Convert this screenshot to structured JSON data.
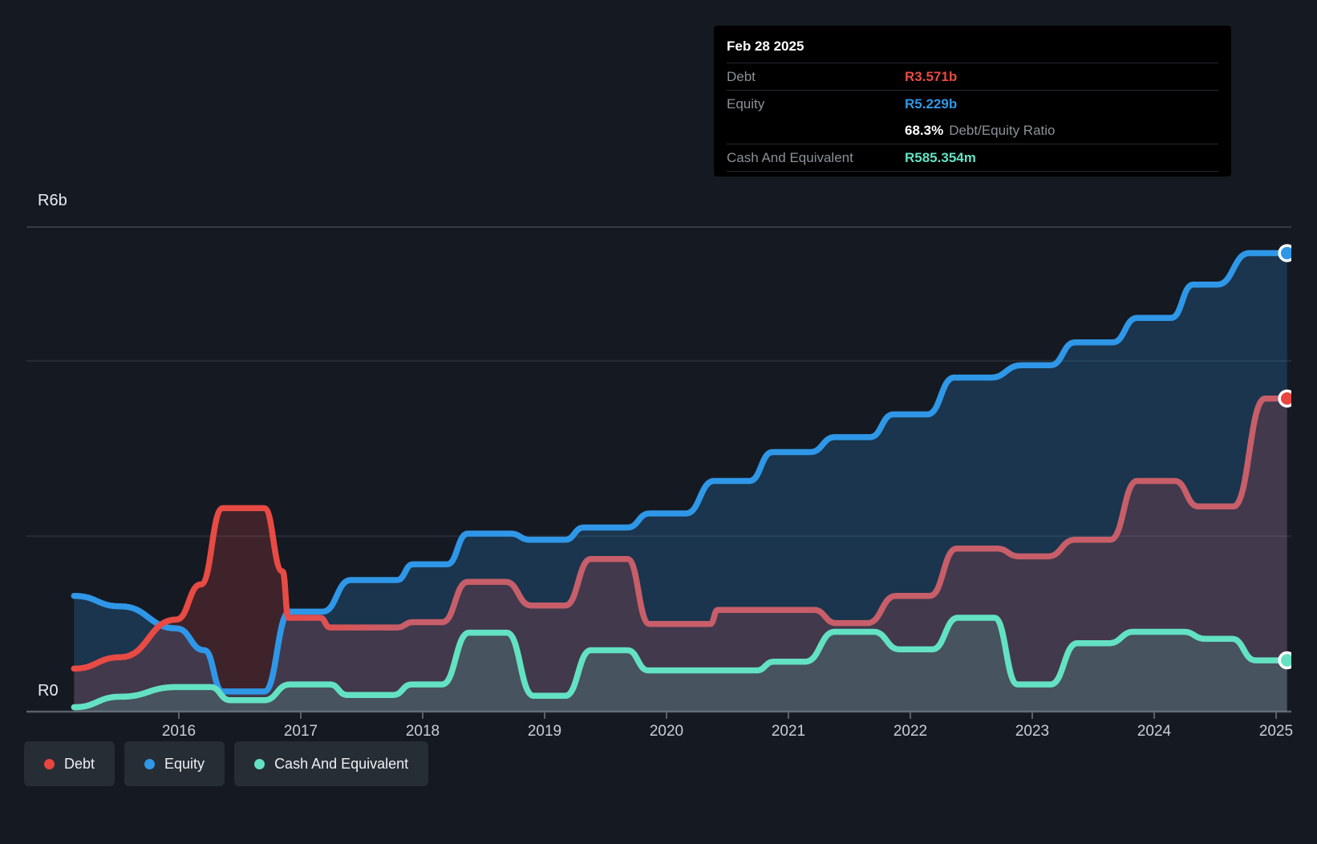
{
  "colors": {
    "debt": "#e84a44",
    "debt_dot": "#e8463f",
    "debt_late": "#c75e69",
    "equity": "#2f97e8",
    "cash": "#63e2c3",
    "background": "#151a22",
    "tooltip_bg": "#000000",
    "axis": "#596069",
    "gridline": "#262d36",
    "top_border": "#343b45",
    "tick_label": "#c9cfd7"
  },
  "tooltip": {
    "date": "Feb 28 2025",
    "debt_label": "Debt",
    "debt_value": "R3.571b",
    "equity_label": "Equity",
    "equity_value": "R5.229b",
    "ratio_value": "68.3%",
    "ratio_label": "Debt/Equity Ratio",
    "cash_label": "Cash And Equivalent",
    "cash_value": "R585.354m"
  },
  "legend": {
    "items": [
      {
        "label": "Debt"
      },
      {
        "label": "Equity"
      },
      {
        "label": "Cash And Equivalent"
      }
    ]
  },
  "chart_data": {
    "type": "area",
    "y_label_top": "R6b",
    "y_label_zero": "R0",
    "currency": "R",
    "unit": "billions ZAR",
    "ylim": [
      0,
      6
    ],
    "x_range": [
      2015.14,
      2025.09
    ],
    "x_ticks": [
      "2016",
      "2017",
      "2018",
      "2019",
      "2020",
      "2021",
      "2022",
      "2023",
      "2024",
      "2025"
    ],
    "gridline_values": [
      2,
      4
    ],
    "legend_position": "bottom-left",
    "series": [
      {
        "name": "Equity",
        "color_key": "equity",
        "end_label": "R5.229b",
        "points": [
          [
            2015.14,
            1.32
          ],
          [
            2015.52,
            1.2
          ],
          [
            2015.98,
            0.95
          ],
          [
            2016.21,
            0.7
          ],
          [
            2016.36,
            0.23
          ],
          [
            2016.7,
            0.23
          ],
          [
            2016.91,
            1.14
          ],
          [
            2017.18,
            1.14
          ],
          [
            2017.41,
            1.5
          ],
          [
            2017.79,
            1.5
          ],
          [
            2017.92,
            1.68
          ],
          [
            2018.2,
            1.68
          ],
          [
            2018.37,
            2.03
          ],
          [
            2018.72,
            2.03
          ],
          [
            2018.88,
            1.96
          ],
          [
            2019.17,
            1.96
          ],
          [
            2019.32,
            2.1
          ],
          [
            2019.68,
            2.1
          ],
          [
            2019.86,
            2.26
          ],
          [
            2020.16,
            2.26
          ],
          [
            2020.39,
            2.63
          ],
          [
            2020.68,
            2.63
          ],
          [
            2020.87,
            2.96
          ],
          [
            2021.18,
            2.96
          ],
          [
            2021.38,
            3.13
          ],
          [
            2021.67,
            3.13
          ],
          [
            2021.86,
            3.39
          ],
          [
            2022.14,
            3.39
          ],
          [
            2022.36,
            3.81
          ],
          [
            2022.66,
            3.81
          ],
          [
            2022.91,
            3.95
          ],
          [
            2023.15,
            3.95
          ],
          [
            2023.35,
            4.21
          ],
          [
            2023.66,
            4.21
          ],
          [
            2023.86,
            4.49
          ],
          [
            2024.14,
            4.49
          ],
          [
            2024.32,
            4.87
          ],
          [
            2024.52,
            4.87
          ],
          [
            2024.78,
            5.229
          ],
          [
            2025.09,
            5.229
          ]
        ]
      },
      {
        "name": "Debt",
        "color_key": "debt",
        "end_label": "R3.571b",
        "points": [
          [
            2015.14,
            0.49
          ],
          [
            2015.52,
            0.62
          ],
          [
            2015.98,
            1.05
          ],
          [
            2016.18,
            1.45
          ],
          [
            2016.36,
            2.32
          ],
          [
            2016.7,
            2.32
          ],
          [
            2016.85,
            1.6
          ],
          [
            2016.9,
            1.07
          ],
          [
            2017.16,
            1.07
          ],
          [
            2017.24,
            0.96
          ],
          [
            2017.79,
            0.96
          ],
          [
            2017.92,
            1.02
          ],
          [
            2018.16,
            1.02
          ],
          [
            2018.37,
            1.48
          ],
          [
            2018.68,
            1.48
          ],
          [
            2018.89,
            1.21
          ],
          [
            2019.17,
            1.21
          ],
          [
            2019.38,
            1.74
          ],
          [
            2019.68,
            1.74
          ],
          [
            2019.86,
            1.0
          ],
          [
            2020.36,
            1.0
          ],
          [
            2020.42,
            1.16
          ],
          [
            2021.21,
            1.16
          ],
          [
            2021.39,
            1.01
          ],
          [
            2021.65,
            1.01
          ],
          [
            2021.88,
            1.32
          ],
          [
            2022.16,
            1.32
          ],
          [
            2022.38,
            1.86
          ],
          [
            2022.71,
            1.86
          ],
          [
            2022.89,
            1.77
          ],
          [
            2023.13,
            1.77
          ],
          [
            2023.35,
            1.96
          ],
          [
            2023.64,
            1.96
          ],
          [
            2023.86,
            2.63
          ],
          [
            2024.17,
            2.63
          ],
          [
            2024.36,
            2.34
          ],
          [
            2024.65,
            2.34
          ],
          [
            2024.91,
            3.571
          ],
          [
            2025.09,
            3.571
          ]
        ]
      },
      {
        "name": "Cash And Equivalent",
        "color_key": "cash",
        "end_label": "R585.354m",
        "points": [
          [
            2015.14,
            0.05
          ],
          [
            2015.52,
            0.17
          ],
          [
            2015.98,
            0.28
          ],
          [
            2016.26,
            0.28
          ],
          [
            2016.42,
            0.13
          ],
          [
            2016.7,
            0.13
          ],
          [
            2016.91,
            0.31
          ],
          [
            2017.24,
            0.31
          ],
          [
            2017.38,
            0.19
          ],
          [
            2017.76,
            0.19
          ],
          [
            2017.91,
            0.31
          ],
          [
            2018.16,
            0.31
          ],
          [
            2018.38,
            0.9
          ],
          [
            2018.69,
            0.9
          ],
          [
            2018.91,
            0.18
          ],
          [
            2019.17,
            0.18
          ],
          [
            2019.38,
            0.7
          ],
          [
            2019.68,
            0.7
          ],
          [
            2019.85,
            0.47
          ],
          [
            2020.74,
            0.47
          ],
          [
            2020.88,
            0.57
          ],
          [
            2021.14,
            0.57
          ],
          [
            2021.38,
            0.91
          ],
          [
            2021.7,
            0.91
          ],
          [
            2021.91,
            0.71
          ],
          [
            2022.18,
            0.71
          ],
          [
            2022.39,
            1.07
          ],
          [
            2022.69,
            1.07
          ],
          [
            2022.88,
            0.31
          ],
          [
            2023.15,
            0.31
          ],
          [
            2023.37,
            0.78
          ],
          [
            2023.63,
            0.78
          ],
          [
            2023.83,
            0.91
          ],
          [
            2024.24,
            0.91
          ],
          [
            2024.42,
            0.83
          ],
          [
            2024.64,
            0.83
          ],
          [
            2024.83,
            0.585
          ],
          [
            2025.09,
            0.585
          ]
        ]
      }
    ]
  }
}
